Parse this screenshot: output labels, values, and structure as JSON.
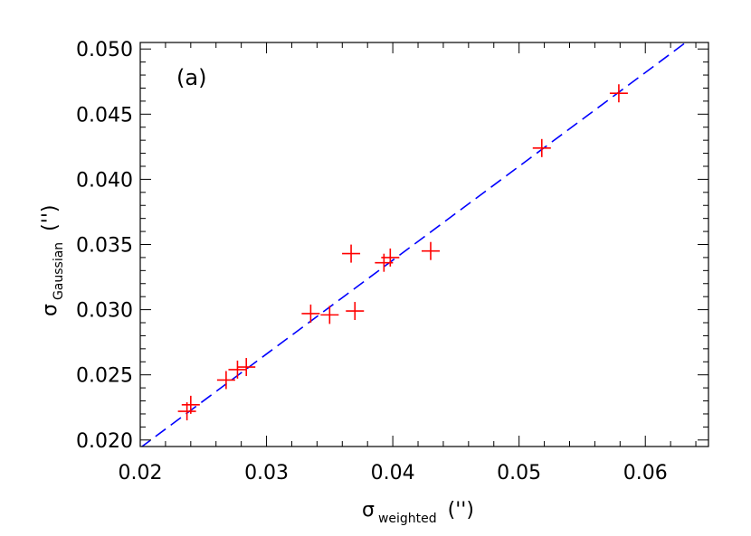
{
  "chart_data": {
    "type": "scatter",
    "panel_label": "(a)",
    "xlabel": {
      "symbol": "σ",
      "subscript": "weighted",
      "unit": "('')"
    },
    "ylabel": {
      "symbol": "σ",
      "subscript": "Gaussian",
      "unit": "('')"
    },
    "xlim": [
      0.02,
      0.065
    ],
    "ylim": [
      0.0195,
      0.0505
    ],
    "xticks": [
      "0.02",
      "0.03",
      "0.04",
      "0.05",
      "0.06"
    ],
    "yticks": [
      "0.020",
      "0.025",
      "0.030",
      "0.035",
      "0.040",
      "0.045",
      "0.050"
    ],
    "xtick_values": [
      0.02,
      0.03,
      0.04,
      0.05,
      0.06
    ],
    "ytick_values": [
      0.02,
      0.025,
      0.03,
      0.035,
      0.04,
      0.045,
      0.05
    ],
    "points": [
      {
        "x": 0.0237,
        "y": 0.0222
      },
      {
        "x": 0.024,
        "y": 0.0227
      },
      {
        "x": 0.0268,
        "y": 0.0246
      },
      {
        "x": 0.0277,
        "y": 0.0254
      },
      {
        "x": 0.0284,
        "y": 0.0256
      },
      {
        "x": 0.0335,
        "y": 0.0297
      },
      {
        "x": 0.035,
        "y": 0.0296
      },
      {
        "x": 0.0367,
        "y": 0.0343
      },
      {
        "x": 0.037,
        "y": 0.0299
      },
      {
        "x": 0.0393,
        "y": 0.0336
      },
      {
        "x": 0.0398,
        "y": 0.034
      },
      {
        "x": 0.043,
        "y": 0.0345
      },
      {
        "x": 0.0518,
        "y": 0.0424
      },
      {
        "x": 0.0579,
        "y": 0.0466
      }
    ],
    "fit_line": {
      "style": "dashed",
      "start": {
        "x": 0.02,
        "y": 0.0194
      },
      "end": {
        "x": 0.0632,
        "y": 0.0505
      }
    },
    "grid": false,
    "colors": {
      "points": "#ff0000",
      "fit_line": "#0000ff",
      "axes": "#000000"
    }
  }
}
